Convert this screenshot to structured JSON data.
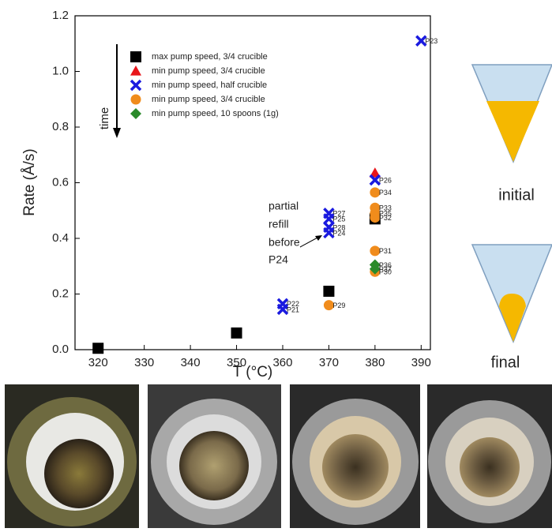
{
  "chart_data": {
    "type": "scatter",
    "x_label": "T (°C)",
    "y_label": "Rate (Å/s)",
    "xlim": [
      315,
      392
    ],
    "xticks": [
      320,
      330,
      340,
      350,
      360,
      370,
      380,
      390
    ],
    "ylim": [
      0,
      1.2
    ],
    "yticks": [
      {
        "value": 0,
        "label": "0.0"
      },
      0.2,
      0.4,
      0.6,
      0.8,
      {
        "value": 1,
        "label": "1.0"
      },
      1.2
    ],
    "legend": "upper left",
    "series": [
      {
        "name": "max pump speed, 3/4 crucible",
        "color": "#000000",
        "marker": "square",
        "x": [
          320,
          350,
          370,
          380
        ],
        "values": [
          0.005,
          0.06,
          0.21,
          0.47
        ]
      },
      {
        "name": "min pump speed, 3/4 crucible",
        "color": "#e8151b",
        "marker": "triangle",
        "x": [
          380
        ],
        "values": [
          0.635
        ]
      },
      {
        "name": "min pump speed, half crucible",
        "color": "#1a1adf",
        "marker": "x",
        "x": [
          360,
          360,
          370,
          370,
          370,
          370,
          380,
          390
        ],
        "values": [
          0.165,
          0.145,
          0.49,
          0.47,
          0.44,
          0.42,
          0.61,
          1.11
        ],
        "point_labels": [
          "P22",
          "P21",
          "P27",
          "P25",
          "P28",
          "P24",
          "P26",
          "P23"
        ]
      },
      {
        "name": "min pump speed, 3/4 crucible",
        "color": "#f08c1c",
        "marker": "circle",
        "x": [
          370,
          380,
          380,
          380,
          380,
          380,
          380
        ],
        "values": [
          0.16,
          0.565,
          0.51,
          0.49,
          0.475,
          0.355,
          0.28
        ],
        "point_labels": [
          "P29",
          "P34",
          "P33",
          "P35",
          "P32",
          "P31",
          "P30"
        ]
      },
      {
        "name": "min pump speed, 10 spoons (1g)",
        "color": "#2a8a2a",
        "marker": "diamond",
        "x": [
          380,
          380
        ],
        "values": [
          0.305,
          0.29
        ],
        "point_labels": [
          "P36",
          "P37"
        ]
      }
    ],
    "annotations": {
      "time": "time",
      "refill": [
        "partial",
        "refill",
        "before",
        "P24"
      ]
    }
  },
  "side_labels": [
    "initial",
    "final"
  ]
}
